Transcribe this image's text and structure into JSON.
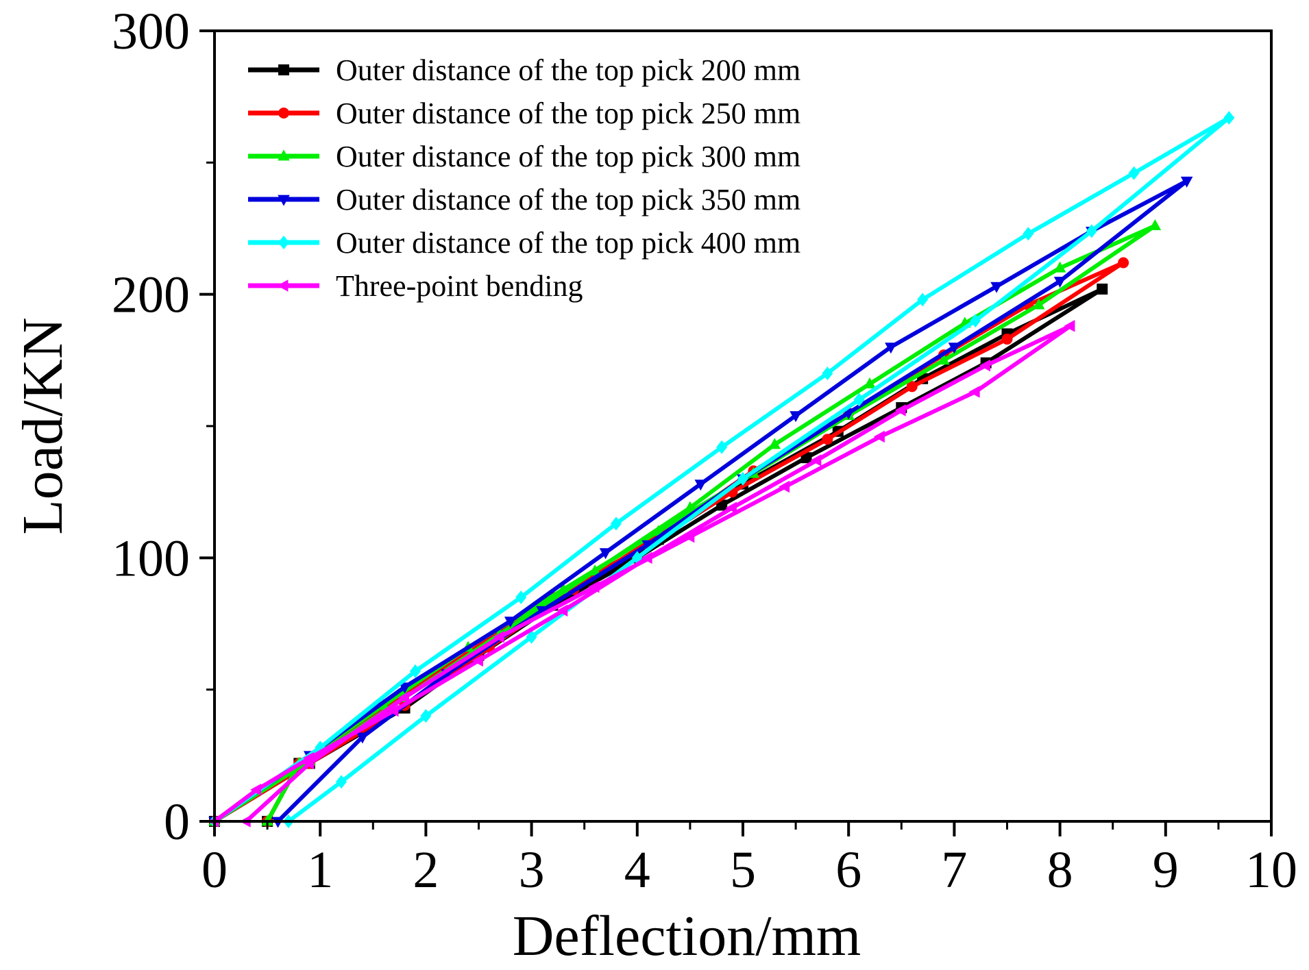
{
  "chart_data": {
    "type": "line",
    "title": "",
    "xlabel": "Deflection/mm",
    "ylabel": "Load/KN",
    "xlim": [
      0,
      10
    ],
    "ylim": [
      0,
      300
    ],
    "xticks": [
      "0",
      "1",
      "2",
      "3",
      "4",
      "5",
      "6",
      "7",
      "8",
      "9",
      "10"
    ],
    "yticks": [
      "0",
      "100",
      "200",
      "300"
    ],
    "legend_position": "top-left",
    "series": [
      {
        "name": "Outer distance of the top pick 200 mm",
        "color": "#000000",
        "marker": "square",
        "x": [
          0,
          0.9,
          1.8,
          2.5,
          3.4,
          4.2,
          5.0,
          5.9,
          6.7,
          7.5,
          8.4,
          7.3,
          6.5,
          5.6,
          4.8,
          4.0,
          3.2,
          2.4,
          1.6,
          0.8,
          0.5
        ],
        "y": [
          0,
          22,
          43,
          63,
          87,
          107,
          128,
          148,
          168,
          185,
          202,
          174,
          157,
          138,
          120,
          100,
          82,
          63,
          43,
          22,
          0
        ]
      },
      {
        "name": "Outer distance of the top pick 250 mm",
        "color": "#ff0000",
        "marker": "circle",
        "x": [
          0,
          0.9,
          1.8,
          2.6,
          3.4,
          4.3,
          5.1,
          6.0,
          6.9,
          7.7,
          8.6,
          7.5,
          6.6,
          5.8,
          4.9,
          4.1,
          3.2,
          2.4,
          1.6,
          0.8,
          0.5
        ],
        "y": [
          0,
          22,
          44,
          66,
          88,
          111,
          133,
          155,
          177,
          196,
          212,
          183,
          165,
          145,
          125,
          105,
          85,
          64,
          43,
          22,
          0
        ]
      },
      {
        "name": "Outer distance of the top pick 300 mm",
        "color": "#00ee00",
        "marker": "triangle-up",
        "x": [
          0,
          0.9,
          1.8,
          2.7,
          3.6,
          4.5,
          5.3,
          6.2,
          7.1,
          8.0,
          8.9,
          7.8,
          6.9,
          6.0,
          5.1,
          4.2,
          3.3,
          2.4,
          1.6,
          0.8,
          0.5
        ],
        "y": [
          0,
          23,
          47,
          71,
          95,
          119,
          143,
          166,
          189,
          210,
          226,
          196,
          175,
          154,
          132,
          110,
          88,
          66,
          44,
          22,
          0
        ]
      },
      {
        "name": "Outer distance of the top pick 350 mm",
        "color": "#0000dd",
        "marker": "triangle-down",
        "x": [
          0,
          0.9,
          1.8,
          2.8,
          3.7,
          4.6,
          5.5,
          6.4,
          7.4,
          8.3,
          9.2,
          8.0,
          7.0,
          6.0,
          5.0,
          4.1,
          3.1,
          2.2,
          1.4,
          0.6
        ],
        "y": [
          0,
          25,
          51,
          76,
          102,
          128,
          154,
          180,
          203,
          224,
          243,
          205,
          180,
          155,
          130,
          105,
          80,
          56,
          32,
          0
        ]
      },
      {
        "name": "Outer distance of the top pick 400 mm",
        "color": "#00ffff",
        "marker": "diamond",
        "x": [
          0,
          1.0,
          1.9,
          2.9,
          3.8,
          4.8,
          5.8,
          6.7,
          7.7,
          8.7,
          9.6,
          8.3,
          7.2,
          6.1,
          5.0,
          4.0,
          3.0,
          2.0,
          1.2,
          0.7
        ],
        "y": [
          0,
          28,
          57,
          85,
          113,
          142,
          170,
          198,
          223,
          246,
          267,
          224,
          190,
          160,
          130,
          100,
          70,
          40,
          15,
          0
        ]
      },
      {
        "name": "Three-point bending",
        "color": "#ff00ff",
        "marker": "triangle-left",
        "x": [
          0,
          0.4,
          0.9,
          1.7,
          2.5,
          3.3,
          4.1,
          4.9,
          5.7,
          6.5,
          7.3,
          8.1,
          7.2,
          6.3,
          5.4,
          4.5,
          3.6,
          2.7,
          1.8,
          0.9,
          0.3
        ],
        "y": [
          0,
          12,
          24,
          42,
          61,
          80,
          100,
          119,
          137,
          156,
          173,
          188,
          163,
          146,
          127,
          108,
          89,
          70,
          47,
          22,
          0
        ]
      }
    ]
  }
}
